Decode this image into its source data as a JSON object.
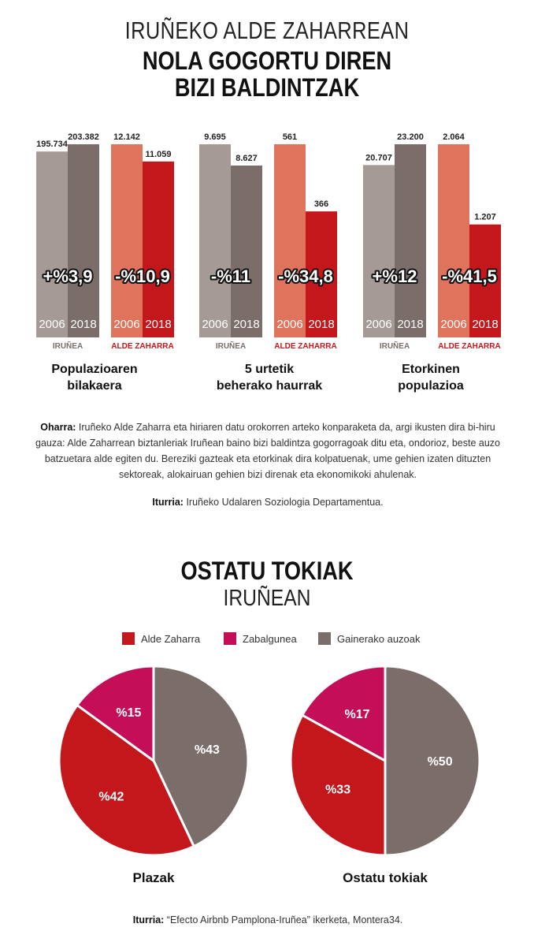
{
  "title": {
    "subtitle": "IRUÑEKO ALDE ZAHARREAN",
    "line1": "NOLA GOGORTU DIREN",
    "line2": "BIZI BALDINTZAK"
  },
  "colors": {
    "irunea_2006": "#a69a96",
    "irunea_2018": "#7b6d69",
    "alde_2006": "#e0735b",
    "alde_2018": "#c4171c",
    "alde_label": "#c4171c",
    "irunea_label": "#7b6d69",
    "zabalgunea": "#c40e57",
    "gainerako": "#7b6d69"
  },
  "chart_data": [
    {
      "type": "bar",
      "title": "Populazioaren bilakaera",
      "categories": [
        "2006",
        "2018"
      ],
      "series": [
        {
          "name": "IRUÑEA",
          "values": [
            195734,
            203382
          ],
          "value_labels": [
            "195.734",
            "203.382"
          ],
          "change": "+%3,9"
        },
        {
          "name": "ALDE ZAHARRA",
          "values": [
            12142,
            11059
          ],
          "value_labels": [
            "12.142",
            "11.059"
          ],
          "change": "-%10,9"
        }
      ]
    },
    {
      "type": "bar",
      "title": "5 urtetik beherako haurrak",
      "categories": [
        "2006",
        "2018"
      ],
      "series": [
        {
          "name": "IRUÑEA",
          "values": [
            9695,
            8627
          ],
          "value_labels": [
            "9.695",
            "8.627"
          ],
          "change": "-%11"
        },
        {
          "name": "ALDE ZAHARRA",
          "values": [
            561,
            366
          ],
          "value_labels": [
            "561",
            "366"
          ],
          "change": "-%34,8"
        }
      ]
    },
    {
      "type": "bar",
      "title": "Etorkinen populazioa",
      "categories": [
        "2006",
        "2018"
      ],
      "series": [
        {
          "name": "IRUÑEA",
          "values": [
            20707,
            23200
          ],
          "value_labels": [
            "20.707",
            "23.200"
          ],
          "change": "+%12"
        },
        {
          "name": "ALDE ZAHARRA",
          "values": [
            2064,
            1207
          ],
          "value_labels": [
            "2.064",
            "1.207"
          ],
          "change": "-%41,5"
        }
      ]
    },
    {
      "type": "pie",
      "title": "Plazak",
      "slices": [
        {
          "name": "Gainerako auzoak",
          "value": 43,
          "label": "%43"
        },
        {
          "name": "Alde Zaharra",
          "value": 42,
          "label": "%42"
        },
        {
          "name": "Zabalgunea",
          "value": 15,
          "label": "%15"
        }
      ]
    },
    {
      "type": "pie",
      "title": "Ostatu tokiak",
      "slices": [
        {
          "name": "Gainerako auzoak",
          "value": 50,
          "label": "%50"
        },
        {
          "name": "Alde Zaharra",
          "value": 33,
          "label": "%33"
        },
        {
          "name": "Zabalgunea",
          "value": 17,
          "label": "%17"
        }
      ]
    }
  ],
  "group_captions": {
    "g1_l1": "Populazioaren",
    "g1_l2": "bilakaera",
    "g2_l1": "5 urtetik",
    "g2_l2": "beherako haurrak",
    "g3_l1": "Etorkinen",
    "g3_l2": "populazioa"
  },
  "note": {
    "label": "Oharra:",
    "text": " Iruñeko Alde Zaharra eta hiriaren datu orokorren arteko konparaketa da, argi ikusten dira bi-hiru gauza: Alde Zaharrean biztanleriak Iruñean baino bizi baldintza gogorragoak ditu eta, ondorioz, beste auzo batzuetara alde egiten du. Bereziki gazteak eta etorkinak dira kolpatuenak, ume gehien izaten dituzten sektoreak, alokairuan gehien bizi direnak eta ekonomikoki ahulenak."
  },
  "source1": {
    "label": "Iturria:",
    "text": " Iruñeko Udalaren Soziologia Departamentua."
  },
  "title2": {
    "main": "OSTATU TOKIAK",
    "sub": "IRUÑEAN"
  },
  "legend": {
    "alde": "Alde Zaharra",
    "zabal": "Zabalgunea",
    "gain": "Gainerako auzoak"
  },
  "pie_captions": {
    "p1": "Plazak",
    "p2": "Ostatu tokiak"
  },
  "source2": {
    "label": "Iturria:",
    "text": " “Efecto Airbnb Pamplona-Iruñea” ikerketa, Montera34."
  }
}
